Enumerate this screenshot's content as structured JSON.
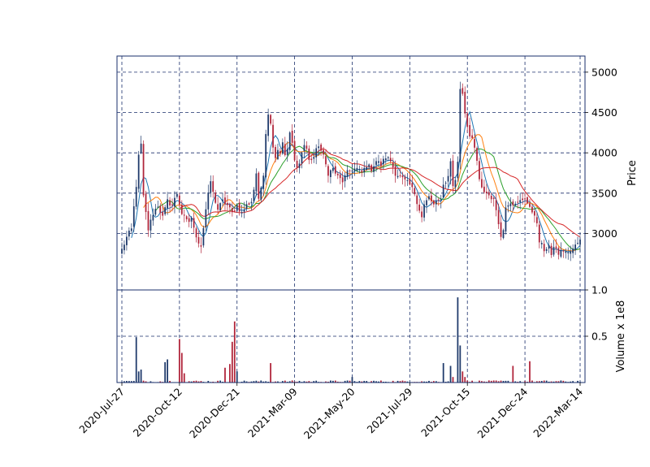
{
  "chart_data": {
    "type": "candlestick",
    "ylabel_price": "Price",
    "ylabel_volume": "Volume x 1e8",
    "x_ticks": [
      "2020-Jul-27",
      "2020-Oct-12",
      "2020-Dec-21",
      "2021-Mar-09",
      "2021-May-20",
      "2021-Jul-29",
      "2021-Oct-15",
      "2021-Dec-24",
      "2022-Mar-14"
    ],
    "price_ticks": [
      "3000",
      "3500",
      "4000",
      "4500",
      "5000"
    ],
    "volume_ticks": [
      "0.5",
      "1.0"
    ],
    "price_ylim": [
      2300,
      5200
    ],
    "volume_ylim": [
      0,
      1.0
    ],
    "grid": true,
    "colors": {
      "up": "#1f3a6b",
      "down": "#b0243a",
      "grid": "#1a2f6b",
      "ma1": "#1f77b4",
      "ma2": "#ff7f0e",
      "ma3": "#2ca02c",
      "ma4": "#d62728"
    },
    "close_anchors": [
      [
        0,
        2800
      ],
      [
        2,
        2950
      ],
      [
        4,
        3050
      ],
      [
        6,
        3600
      ],
      [
        7,
        3950
      ],
      [
        8,
        4100
      ],
      [
        9,
        3450
      ],
      [
        11,
        3050
      ],
      [
        13,
        3250
      ],
      [
        15,
        3350
      ],
      [
        17,
        3200
      ],
      [
        19,
        3400
      ],
      [
        21,
        3350
      ],
      [
        23,
        3500
      ],
      [
        25,
        3250
      ],
      [
        27,
        3150
      ],
      [
        28,
        3150
      ],
      [
        29,
        3200
      ],
      [
        30,
        3050
      ],
      [
        32,
        2900
      ],
      [
        33,
        2850
      ],
      [
        35,
        3300
      ],
      [
        37,
        3650
      ],
      [
        38,
        3500
      ],
      [
        40,
        3300
      ],
      [
        42,
        3400
      ],
      [
        44,
        3350
      ],
      [
        46,
        3250
      ],
      [
        48,
        3350
      ],
      [
        50,
        3250
      ],
      [
        52,
        3350
      ],
      [
        54,
        3400
      ],
      [
        55,
        3550
      ],
      [
        56,
        3750
      ],
      [
        57,
        3400
      ],
      [
        59,
        3750
      ],
      [
        60,
        4250
      ],
      [
        61,
        4500
      ],
      [
        62,
        4350
      ],
      [
        63,
        4100
      ],
      [
        64,
        3950
      ],
      [
        65,
        4050
      ],
      [
        66,
        4000
      ],
      [
        67,
        4150
      ],
      [
        68,
        3950
      ],
      [
        69,
        4050
      ],
      [
        70,
        4250
      ],
      [
        71,
        4100
      ],
      [
        72,
        3900
      ],
      [
        73,
        3800
      ],
      [
        74,
        3900
      ],
      [
        76,
        4100
      ],
      [
        77,
        4050
      ],
      [
        78,
        3900
      ],
      [
        80,
        3950
      ],
      [
        82,
        4100
      ],
      [
        84,
        3950
      ],
      [
        86,
        3750
      ],
      [
        88,
        3800
      ],
      [
        90,
        3700
      ],
      [
        92,
        3650
      ],
      [
        94,
        3750
      ],
      [
        96,
        3800
      ],
      [
        98,
        3800
      ],
      [
        100,
        3750
      ],
      [
        102,
        3850
      ],
      [
        104,
        3800
      ],
      [
        106,
        3900
      ],
      [
        108,
        3850
      ],
      [
        110,
        3950
      ],
      [
        112,
        3900
      ],
      [
        114,
        3750
      ],
      [
        116,
        3700
      ],
      [
        118,
        3650
      ],
      [
        120,
        3600
      ],
      [
        122,
        3500
      ],
      [
        124,
        3300
      ],
      [
        125,
        3200
      ],
      [
        126,
        3350
      ],
      [
        128,
        3450
      ],
      [
        130,
        3350
      ],
      [
        132,
        3400
      ],
      [
        133,
        3450
      ],
      [
        134,
        3600
      ],
      [
        136,
        3700
      ],
      [
        137,
        3900
      ],
      [
        138,
        3600
      ],
      [
        139,
        3650
      ],
      [
        140,
        3900
      ],
      [
        141,
        4800
      ],
      [
        142,
        4750
      ],
      [
        143,
        4500
      ],
      [
        144,
        4350
      ],
      [
        145,
        4200
      ],
      [
        146,
        4150
      ],
      [
        147,
        4050
      ],
      [
        148,
        3900
      ],
      [
        149,
        3650
      ],
      [
        150,
        3550
      ],
      [
        152,
        3500
      ],
      [
        154,
        3450
      ],
      [
        155,
        3400
      ],
      [
        156,
        3300
      ],
      [
        157,
        3150
      ],
      [
        158,
        2950
      ],
      [
        159,
        3050
      ],
      [
        160,
        3350
      ],
      [
        162,
        3400
      ],
      [
        164,
        3350
      ],
      [
        166,
        3400
      ],
      [
        168,
        3450
      ],
      [
        170,
        3300
      ],
      [
        172,
        3250
      ],
      [
        173,
        3100
      ],
      [
        174,
        2900
      ],
      [
        176,
        2800
      ],
      [
        178,
        2850
      ],
      [
        179,
        2700
      ],
      [
        180,
        2850
      ],
      [
        182,
        2750
      ],
      [
        184,
        2800
      ],
      [
        186,
        2750
      ],
      [
        188,
        2800
      ],
      [
        190,
        2900
      ],
      [
        191,
        2950
      ]
    ],
    "volume_spikes": [
      [
        6,
        0.49
      ],
      [
        7,
        0.12
      ],
      [
        8,
        0.14
      ],
      [
        18,
        0.22
      ],
      [
        19,
        0.25
      ],
      [
        24,
        0.47
      ],
      [
        25,
        0.32
      ],
      [
        26,
        0.1
      ],
      [
        43,
        0.16
      ],
      [
        45,
        0.2
      ],
      [
        46,
        0.44
      ],
      [
        47,
        0.66
      ],
      [
        48,
        0.12
      ],
      [
        62,
        0.21
      ],
      [
        96,
        0.06
      ],
      [
        134,
        0.21
      ],
      [
        137,
        0.18
      ],
      [
        138,
        0.06
      ],
      [
        140,
        0.92
      ],
      [
        141,
        0.4
      ],
      [
        142,
        0.12
      ],
      [
        143,
        0.06
      ],
      [
        163,
        0.18
      ],
      [
        170,
        0.23
      ]
    ]
  }
}
